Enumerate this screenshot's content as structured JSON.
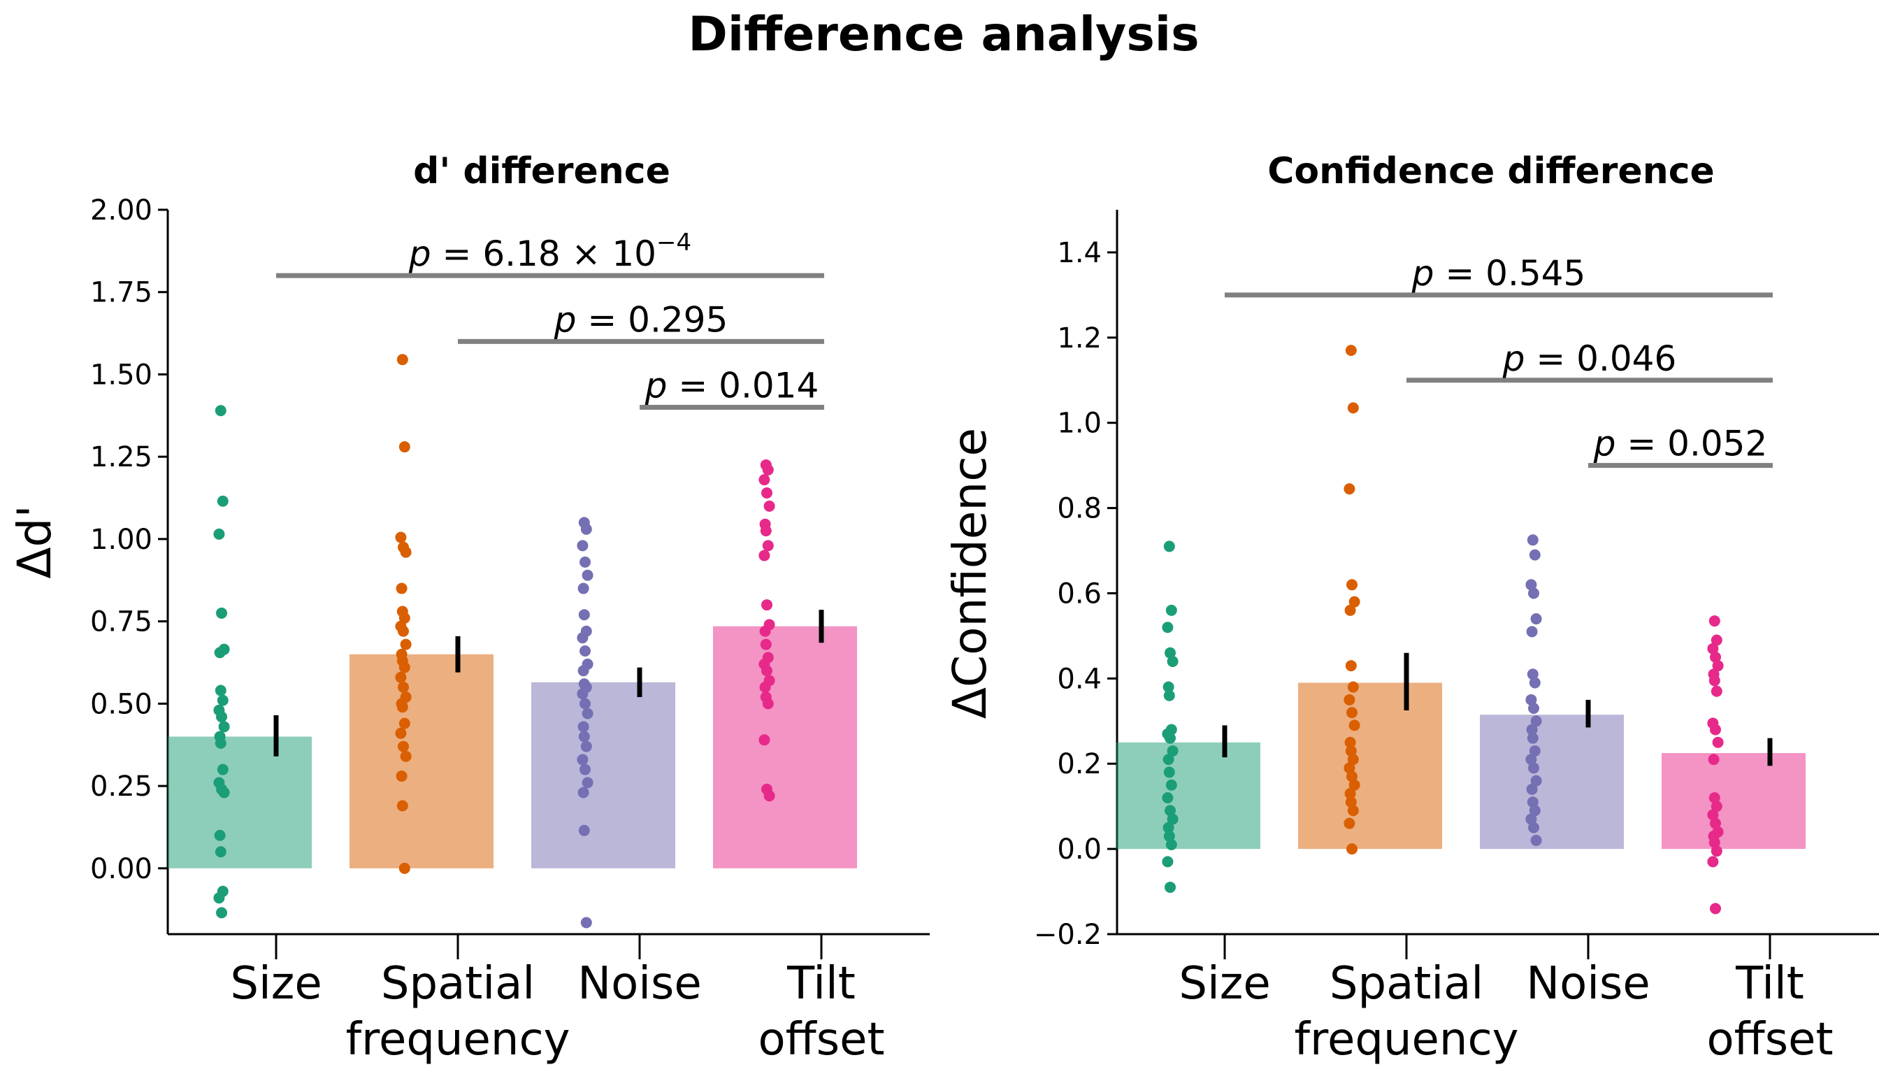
{
  "figure": {
    "title": "Difference analysis"
  },
  "colors": {
    "size": "#1b9e77",
    "spatial_frequency": "#d95f02",
    "noise": "#7570b3",
    "tilt_offset": "#e7298a",
    "bar_alpha": 0.5,
    "bracket": "#808080",
    "axis": "#000000"
  },
  "chart_data": [
    {
      "type": "bar",
      "title": "d' difference",
      "ylabel": "Δd'",
      "xlabel": "",
      "ylim": [
        -0.2,
        2.0
      ],
      "yticks": [
        "2.00",
        "1.75",
        "1.50",
        "1.25",
        "1.00",
        "0.75",
        "0.50",
        "0.25",
        "0.00"
      ],
      "ytick_values": [
        2.0,
        1.75,
        1.5,
        1.25,
        1.0,
        0.75,
        0.5,
        0.25,
        0.0
      ],
      "categories": [
        {
          "lines": [
            "Size"
          ],
          "color_key": "size"
        },
        {
          "lines": [
            "Spatial",
            "frequency"
          ],
          "color_key": "spatial_frequency"
        },
        {
          "lines": [
            "Noise"
          ],
          "color_key": "noise"
        },
        {
          "lines": [
            "Tilt",
            "offset"
          ],
          "color_key": "tilt_offset"
        }
      ],
      "values": [
        0.4,
        0.65,
        0.565,
        0.735
      ],
      "errors": [
        [
          0.34,
          0.465
        ],
        [
          0.595,
          0.705
        ],
        [
          0.52,
          0.61
        ],
        [
          0.685,
          0.785
        ]
      ],
      "points": [
        [
          1.39,
          1.115,
          1.015,
          0.775,
          0.665,
          0.655,
          0.54,
          0.51,
          0.48,
          0.46,
          0.43,
          0.4,
          0.38,
          0.3,
          0.26,
          0.24,
          0.23,
          0.1,
          0.05,
          -0.07,
          -0.09,
          -0.135
        ],
        [
          1.545,
          1.28,
          1.005,
          0.975,
          0.96,
          0.85,
          0.78,
          0.76,
          0.735,
          0.72,
          0.68,
          0.65,
          0.63,
          0.61,
          0.58,
          0.55,
          0.52,
          0.5,
          0.49,
          0.44,
          0.41,
          0.37,
          0.34,
          0.28,
          0.19,
          0.0
        ],
        [
          1.05,
          1.03,
          0.98,
          0.93,
          0.89,
          0.85,
          0.77,
          0.72,
          0.7,
          0.66,
          0.62,
          0.6,
          0.56,
          0.55,
          0.53,
          0.5,
          0.47,
          0.43,
          0.4,
          0.37,
          0.33,
          0.3,
          0.26,
          0.23,
          0.115,
          -0.165
        ],
        [
          1.225,
          1.21,
          1.18,
          1.14,
          1.1,
          1.045,
          1.025,
          0.98,
          0.95,
          0.8,
          0.74,
          0.72,
          0.68,
          0.64,
          0.62,
          0.6,
          0.57,
          0.55,
          0.52,
          0.5,
          0.39,
          0.24,
          0.22
        ]
      ],
      "brackets": [
        {
          "from": 0,
          "to": 3,
          "y": 1.8,
          "label": {
            "lhs": "p",
            "mid": " = 6.18 × 10",
            "sup": "−4"
          }
        },
        {
          "from": 1,
          "to": 3,
          "y": 1.6,
          "label": {
            "lhs": "p",
            "mid": " = 0.295",
            "sup": ""
          }
        },
        {
          "from": 2,
          "to": 3,
          "y": 1.4,
          "label": {
            "lhs": "p",
            "mid": " = 0.014",
            "sup": ""
          }
        }
      ]
    },
    {
      "type": "bar",
      "title": "Confidence difference",
      "ylabel": "ΔConfidence",
      "xlabel": "",
      "ylim": [
        -0.2,
        1.5
      ],
      "yticks": [
        "1.4",
        "1.2",
        "1.0",
        "0.8",
        "0.6",
        "0.4",
        "0.2",
        "0.0",
        "−0.2"
      ],
      "ytick_values": [
        1.4,
        1.2,
        1.0,
        0.8,
        0.6,
        0.4,
        0.2,
        0.0,
        -0.2
      ],
      "categories": [
        {
          "lines": [
            "Size"
          ],
          "color_key": "size"
        },
        {
          "lines": [
            "Spatial",
            "frequency"
          ],
          "color_key": "spatial_frequency"
        },
        {
          "lines": [
            "Noise"
          ],
          "color_key": "noise"
        },
        {
          "lines": [
            "Tilt",
            "offset"
          ],
          "color_key": "tilt_offset"
        }
      ],
      "values": [
        0.25,
        0.39,
        0.315,
        0.225
      ],
      "errors": [
        [
          0.215,
          0.29
        ],
        [
          0.325,
          0.46
        ],
        [
          0.285,
          0.35
        ],
        [
          0.195,
          0.26
        ]
      ],
      "points": [
        [
          0.71,
          0.56,
          0.52,
          0.46,
          0.44,
          0.38,
          0.36,
          0.28,
          0.27,
          0.26,
          0.23,
          0.21,
          0.18,
          0.15,
          0.12,
          0.09,
          0.07,
          0.05,
          0.03,
          0.01,
          -0.03,
          -0.09
        ],
        [
          1.17,
          1.035,
          0.845,
          0.62,
          0.58,
          0.56,
          0.43,
          0.38,
          0.35,
          0.32,
          0.29,
          0.25,
          0.23,
          0.21,
          0.19,
          0.17,
          0.15,
          0.13,
          0.11,
          0.09,
          0.06,
          0.0
        ],
        [
          0.725,
          0.69,
          0.62,
          0.6,
          0.54,
          0.51,
          0.41,
          0.39,
          0.35,
          0.33,
          0.3,
          0.28,
          0.26,
          0.23,
          0.21,
          0.19,
          0.16,
          0.14,
          0.11,
          0.09,
          0.07,
          0.05,
          0.02
        ],
        [
          0.535,
          0.49,
          0.47,
          0.45,
          0.43,
          0.41,
          0.395,
          0.37,
          0.295,
          0.28,
          0.25,
          0.21,
          0.12,
          0.1,
          0.08,
          0.06,
          0.04,
          0.03,
          0.015,
          -0.005,
          -0.03,
          -0.14
        ]
      ],
      "brackets": [
        {
          "from": 0,
          "to": 3,
          "y": 1.3,
          "label": {
            "lhs": "p",
            "mid": " = 0.545",
            "sup": ""
          }
        },
        {
          "from": 1,
          "to": 3,
          "y": 1.1,
          "label": {
            "lhs": "p",
            "mid": " = 0.046",
            "sup": ""
          }
        },
        {
          "from": 2,
          "to": 3,
          "y": 0.9,
          "label": {
            "lhs": "p",
            "mid": " = 0.052",
            "sup": ""
          }
        }
      ]
    }
  ]
}
